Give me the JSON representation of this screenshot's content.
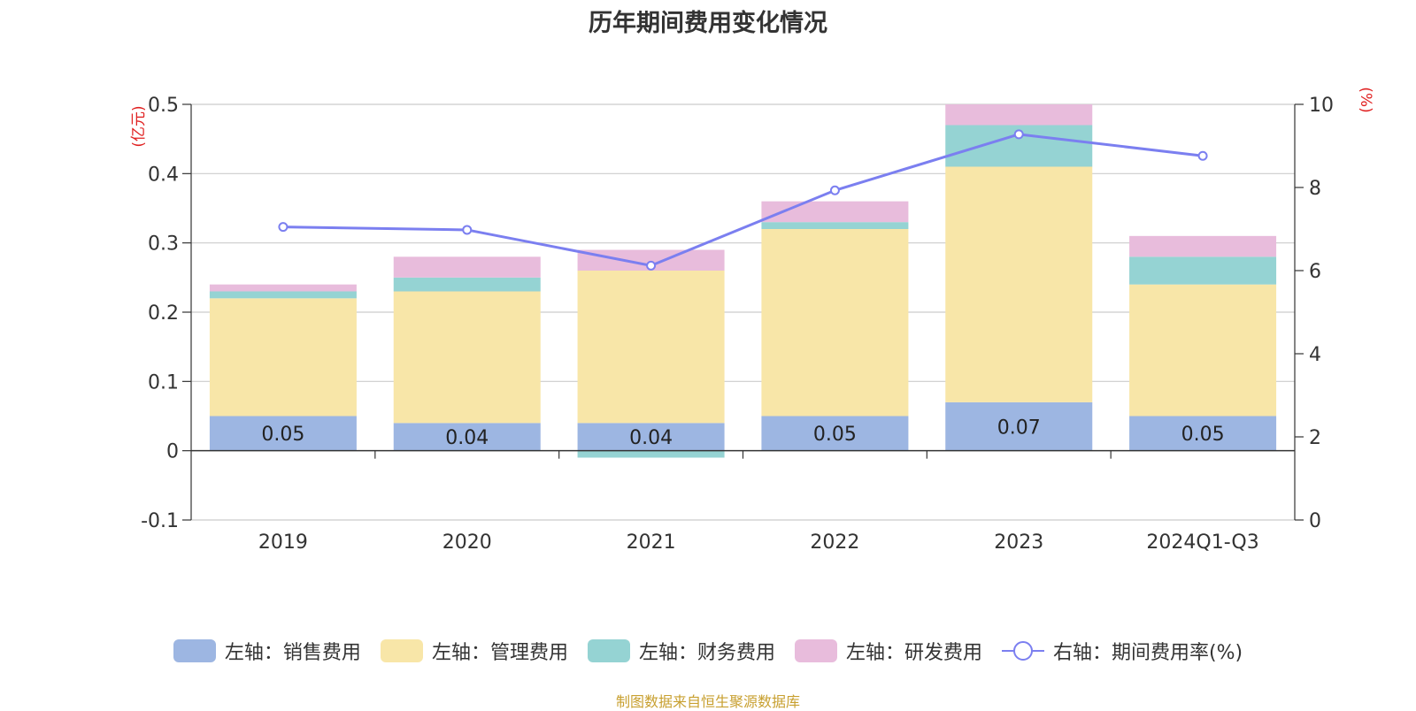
{
  "title": "历年期间费用变化情况",
  "source": "制图数据来自恒生聚源数据库",
  "chart_data": {
    "type": "bar",
    "stacked": true,
    "categories": [
      "2019",
      "2020",
      "2021",
      "2022",
      "2023",
      "2024Q1-Q3"
    ],
    "series": [
      {
        "name": "左轴：销售费用",
        "axis": "left",
        "color": "#9db6e2",
        "values": [
          0.05,
          0.04,
          0.04,
          0.05,
          0.07,
          0.05
        ],
        "labels": [
          "0.05",
          "0.04",
          "0.04",
          "0.05",
          "0.07",
          "0.05"
        ]
      },
      {
        "name": "左轴：管理费用",
        "axis": "left",
        "color": "#f8e6a8",
        "values": [
          0.17,
          0.19,
          0.22,
          0.27,
          0.34,
          0.19
        ]
      },
      {
        "name": "左轴：财务费用",
        "axis": "left",
        "color": "#95d3d3",
        "values": [
          0.01,
          0.02,
          -0.01,
          0.01,
          0.06,
          0.04
        ]
      },
      {
        "name": "左轴：研发费用",
        "axis": "left",
        "color": "#e8bcdc",
        "values": [
          0.01,
          0.03,
          0.03,
          0.03,
          0.03,
          0.03
        ]
      }
    ],
    "line": {
      "name": "右轴：期间费用率(%)",
      "axis": "right",
      "color": "#7b7ff0",
      "values": [
        7.05,
        6.98,
        6.12,
        7.93,
        9.28,
        8.76
      ]
    },
    "left_axis": {
      "unit": "(亿元)",
      "min": -0.1,
      "max": 0.5,
      "ticks": [
        -0.1,
        0,
        0.1,
        0.2,
        0.3,
        0.4,
        0.5
      ],
      "tick_labels": [
        "-0.1",
        "0",
        "0.1",
        "0.2",
        "0.3",
        "0.4",
        "0.5"
      ]
    },
    "right_axis": {
      "unit": "(%)",
      "min": 0,
      "max": 10,
      "ticks": [
        0,
        2,
        4,
        6,
        8,
        10
      ],
      "tick_labels": [
        "0",
        "2",
        "4",
        "6",
        "8",
        "10"
      ]
    },
    "grid": true,
    "legend_position": "bottom"
  }
}
